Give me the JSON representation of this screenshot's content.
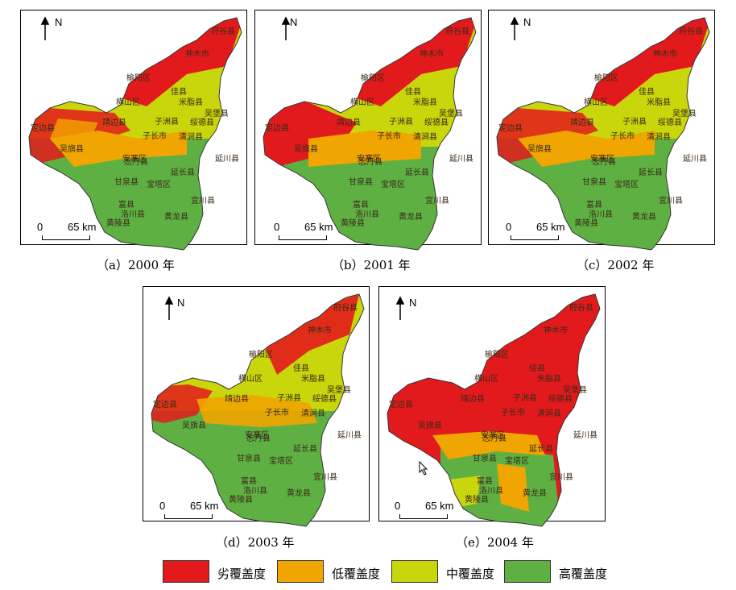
{
  "north_label": "N",
  "scale": {
    "zero": "0",
    "distance": "65 km"
  },
  "panels": [
    {
      "caption": "（a）2000 年",
      "tone": "mixed"
    },
    {
      "caption": "（b）2001 年",
      "tone": "mixed-west-red"
    },
    {
      "caption": "（c）2002 年",
      "tone": "mixed"
    },
    {
      "caption": "（d）2003 年",
      "tone": "moderate"
    },
    {
      "caption": "（e）2004 年",
      "tone": "mostly-red"
    }
  ],
  "place_names": [
    "府谷县",
    "神木市",
    "榆阳区",
    "佳县",
    "横山区",
    "米脂县",
    "吴堡县",
    "定边县",
    "靖边县",
    "子洲县",
    "绥德县",
    "子长市",
    "清涧县",
    "吴旗县",
    "志丹县",
    "安塞区",
    "延川县",
    "延长县",
    "甘泉县",
    "宝塔区",
    "富县",
    "宜川县",
    "洛川县",
    "黄龙县",
    "黄陵县"
  ],
  "legend": [
    {
      "label": "劣覆盖度",
      "color": "#e31a1c"
    },
    {
      "label": "低覆盖度",
      "color": "#f0a500"
    },
    {
      "label": "中覆盖度",
      "color": "#c9d60b"
    },
    {
      "label": "高覆盖度",
      "color": "#5fb043"
    }
  ]
}
